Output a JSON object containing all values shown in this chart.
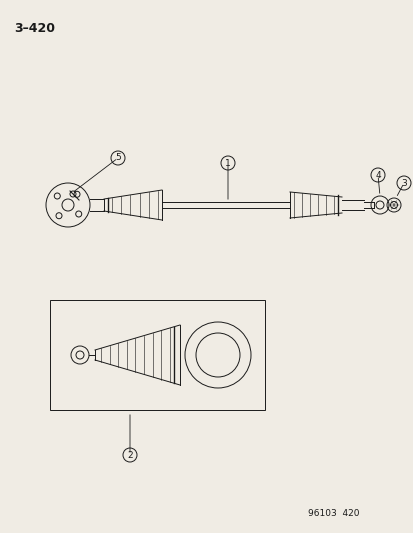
{
  "title": "3–420",
  "footer": "96103  420",
  "bg_color": "#f0ece4",
  "line_color": "#1a1a1a",
  "title_fontsize": 9,
  "footer_fontsize": 6.5,
  "callout_r": 7,
  "callout_fontsize": 6.5
}
